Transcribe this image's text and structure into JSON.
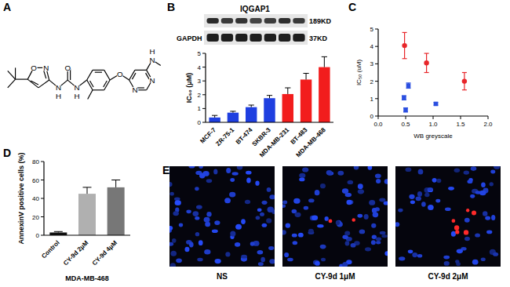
{
  "figure": {
    "panel_labels": [
      "A",
      "B",
      "C",
      "D",
      "E"
    ],
    "structure": {
      "atoms": [
        "O",
        "N",
        "N",
        "H",
        "O",
        "N",
        "H",
        "O",
        "N",
        "N",
        "N",
        "H"
      ]
    },
    "blot": {
      "bands": [
        "IQGAP1",
        "GAPDH"
      ],
      "sizes": [
        "189KD",
        "37KD"
      ]
    },
    "images": {
      "labels": [
        "NS",
        "CY-9d 1μM",
        "CY-9d 2μM"
      ]
    }
  },
  "chart_data": [
    {
      "type": "bar",
      "ylabel": "IC₅₀ (μM)",
      "categories": [
        "MCF-7",
        "ZR-75-1",
        "BT-474",
        "SKBR-3",
        "MDA-MB-231",
        "BT-483",
        "MDA-MB-468"
      ],
      "values": [
        0.35,
        0.7,
        1.1,
        1.75,
        2.05,
        3.1,
        4.0
      ],
      "errors": [
        0.15,
        0.1,
        0.15,
        0.2,
        0.45,
        0.45,
        0.75
      ],
      "colors": [
        "#1f3fe0",
        "#1f3fe0",
        "#1f3fe0",
        "#1f3fe0",
        "#f21d1d",
        "#f21d1d",
        "#f21d1d"
      ],
      "ylim": [
        0,
        5
      ],
      "yticks": [
        0,
        1,
        2,
        3,
        4,
        5
      ]
    },
    {
      "type": "scatter",
      "xlabel": "WB greyscale",
      "ylabel": "IC₅₀ (uM)",
      "series": [
        {
          "color": "#e8262a",
          "marker": "circle",
          "x": [
            0.48,
            0.88,
            1.57
          ],
          "values": [
            4.05,
            3.05,
            2.0
          ],
          "errors": [
            0.75,
            0.55,
            0.5
          ]
        },
        {
          "color": "#2b4fe0",
          "marker": "square",
          "x": [
            0.47,
            0.5,
            0.55,
            1.05
          ],
          "values": [
            1.05,
            0.35,
            1.75,
            0.7
          ],
          "errors": [
            0.12,
            0.12,
            0.15,
            0.07
          ]
        }
      ],
      "xlim": [
        0,
        2
      ],
      "xticks": [
        {
          "value": 0,
          "label": "0.0"
        },
        {
          "value": 0.5,
          "label": "0.5"
        },
        {
          "value": 1,
          "label": "1.0"
        },
        {
          "value": 1.5,
          "label": "1.5"
        },
        {
          "value": 2,
          "label": "2.0"
        }
      ],
      "ylim": [
        0,
        5
      ],
      "yticks": [
        0,
        1,
        2,
        3,
        4,
        5
      ]
    },
    {
      "type": "bar",
      "ylabel": "AnnexinV positive cells (%)",
      "xlabel": "MDA-MB-468",
      "categories": [
        "Control",
        "CY-9d 2μM",
        "CY-9d 4μM"
      ],
      "values": [
        3,
        45,
        52
      ],
      "errors": [
        1,
        7,
        8
      ],
      "colors": [
        "#111111",
        "#b0b0b0",
        "#777777"
      ],
      "ylim": [
        0,
        80
      ],
      "yticks": [
        0,
        20,
        40,
        60,
        80
      ]
    }
  ]
}
